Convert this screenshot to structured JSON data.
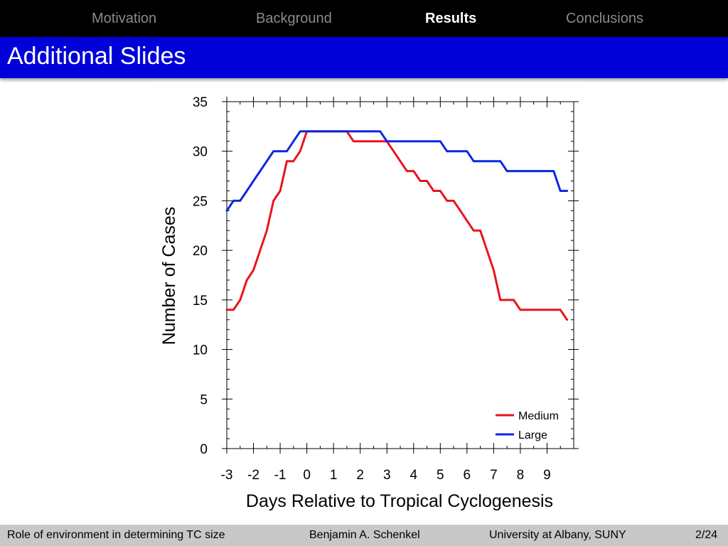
{
  "nav": {
    "items": [
      {
        "label": "Motivation",
        "active": false
      },
      {
        "label": "Background",
        "active": false
      },
      {
        "label": "Results",
        "active": true
      },
      {
        "label": "Conclusions",
        "active": false
      }
    ]
  },
  "slide": {
    "title": "Additional Slides"
  },
  "footer": {
    "talk_title": "Role of environment in determining TC size",
    "author": "Benjamin A. Schenkel",
    "institution": "University at Albany, SUNY",
    "page": "2/24"
  },
  "colors": {
    "nav_bg": "#000000",
    "title_bar": "#0000d8",
    "footer_bg": "#c8c8c8",
    "medium": "#e8151b",
    "large": "#0a28e0"
  },
  "chart_data": {
    "type": "line",
    "xlabel": "Days Relative to Tropical Cyclogenesis",
    "ylabel": "Number of Cases",
    "xlim": [
      -3,
      10
    ],
    "ylim": [
      0,
      35
    ],
    "xticks": [
      -3,
      -2,
      -1,
      0,
      1,
      2,
      3,
      4,
      5,
      6,
      7,
      8,
      9
    ],
    "xtick_labels": [
      "-3",
      "-2",
      "-1",
      "0",
      "1",
      "2",
      "3",
      "4",
      "5",
      "6",
      "7",
      "8",
      "9"
    ],
    "yticks": [
      0,
      5,
      10,
      15,
      20,
      25,
      30,
      35
    ],
    "ytick_labels": [
      "0",
      "5",
      "10",
      "15",
      "20",
      "25",
      "30",
      "35"
    ],
    "legend_position": "bottom-right",
    "grid": false,
    "series": [
      {
        "name": "Medium",
        "color": "#e8151b",
        "x": [
          -3,
          -2.75,
          -2.5,
          -2.25,
          -2,
          -1.75,
          -1.5,
          -1.25,
          -1,
          -0.75,
          -0.5,
          -0.25,
          0,
          0.25,
          0.5,
          0.75,
          1,
          1.25,
          1.5,
          1.75,
          2,
          2.25,
          2.5,
          2.75,
          3,
          3.25,
          3.5,
          3.75,
          4,
          4.25,
          4.5,
          4.75,
          5,
          5.25,
          5.5,
          5.75,
          6,
          6.25,
          6.5,
          6.75,
          7,
          7.25,
          7.5,
          7.75,
          8,
          8.25,
          8.5,
          8.75,
          9,
          9.25,
          9.5,
          9.75
        ],
        "y": [
          14,
          14,
          15,
          17,
          18,
          20,
          22,
          25,
          26,
          29,
          29,
          30,
          32,
          32,
          32,
          32,
          32,
          32,
          32,
          31,
          31,
          31,
          31,
          31,
          31,
          30,
          29,
          28,
          28,
          27,
          27,
          26,
          26,
          25,
          25,
          24,
          23,
          22,
          22,
          20,
          18,
          15,
          15,
          15,
          14,
          14,
          14,
          14,
          14,
          14,
          14,
          13
        ]
      },
      {
        "name": "Large",
        "color": "#0a28e0",
        "x": [
          -3,
          -2.75,
          -2.5,
          -2.25,
          -2,
          -1.75,
          -1.5,
          -1.25,
          -1,
          -0.75,
          -0.5,
          -0.25,
          0,
          0.25,
          0.5,
          0.75,
          1,
          1.25,
          1.5,
          1.75,
          2,
          2.25,
          2.5,
          2.75,
          3,
          3.25,
          3.5,
          3.75,
          4,
          4.25,
          4.5,
          4.75,
          5,
          5.25,
          5.5,
          5.75,
          6,
          6.25,
          6.5,
          6.75,
          7,
          7.25,
          7.5,
          7.75,
          8,
          8.25,
          8.5,
          8.75,
          9,
          9.25,
          9.5,
          9.75
        ],
        "y": [
          24,
          25,
          25,
          26,
          27,
          28,
          29,
          30,
          30,
          30,
          31,
          32,
          32,
          32,
          32,
          32,
          32,
          32,
          32,
          32,
          32,
          32,
          32,
          32,
          31,
          31,
          31,
          31,
          31,
          31,
          31,
          31,
          31,
          30,
          30,
          30,
          30,
          29,
          29,
          29,
          29,
          29,
          28,
          28,
          28,
          28,
          28,
          28,
          28,
          28,
          26,
          26
        ]
      }
    ]
  }
}
